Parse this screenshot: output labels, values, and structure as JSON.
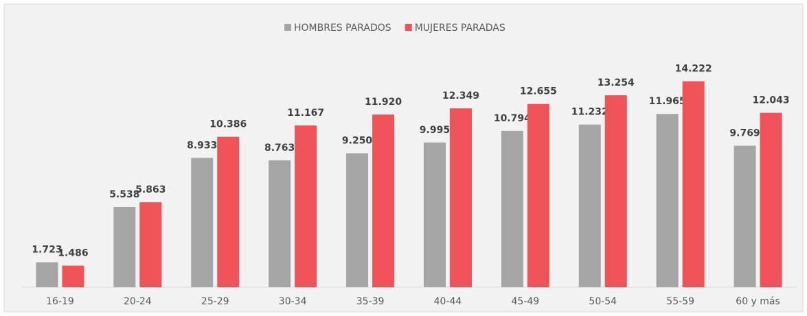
{
  "chart_data": {
    "type": "bar",
    "categories": [
      "16-19",
      "20-24",
      "25-29",
      "30-34",
      "35-39",
      "40-44",
      "45-49",
      "50-54",
      "55-59",
      "60 y más"
    ],
    "series": [
      {
        "name": "HOMBRES PARADOS",
        "color": "#a5a5a5",
        "values": [
          1723,
          5538,
          8933,
          8763,
          9250,
          9995,
          10794,
          11232,
          11965,
          9769
        ],
        "value_labels": [
          "1.723",
          "5.538",
          "8.933",
          "8.763",
          "9.250",
          "9.995",
          "10.794",
          "11.232",
          "11.965",
          "9.769"
        ]
      },
      {
        "name": "MUJERES PARADAS",
        "color": "#ef5257",
        "values": [
          1486,
          5863,
          10386,
          11167,
          11920,
          12349,
          12655,
          13254,
          14222,
          12043
        ],
        "value_labels": [
          "1.486",
          "5.863",
          "10.386",
          "11.167",
          "11.920",
          "12.349",
          "12.655",
          "13.254",
          "14.222",
          "12.043"
        ]
      }
    ],
    "ylim": [
      0,
      16000
    ],
    "legend": "top",
    "grid": false
  }
}
